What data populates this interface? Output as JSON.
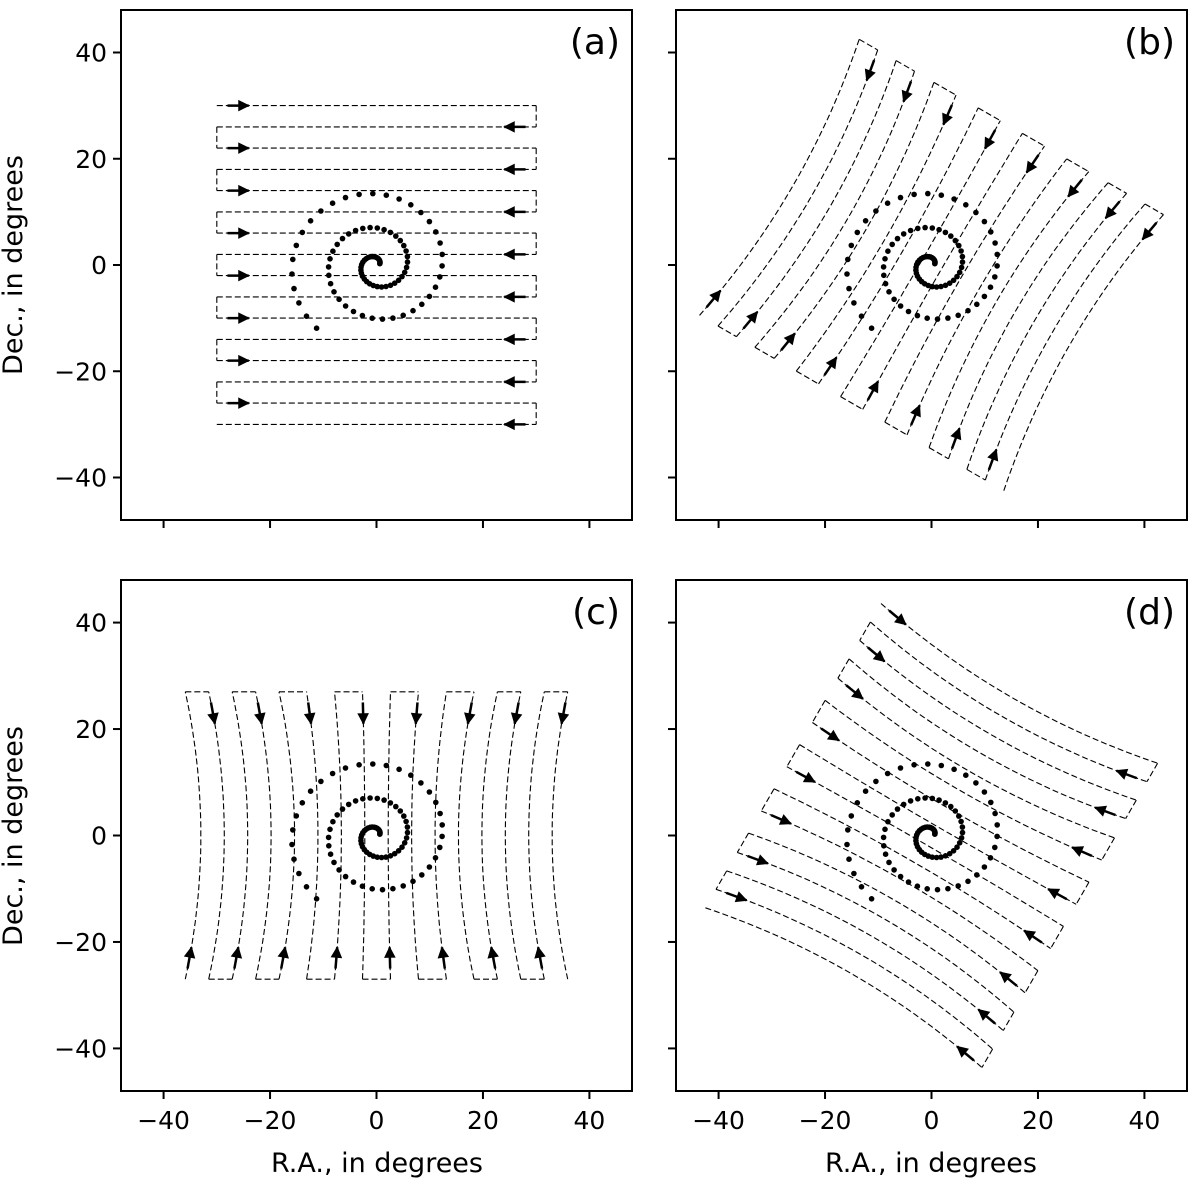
{
  "chart_data": {
    "type": "scatter",
    "xlim": [
      -48,
      48
    ],
    "ylim": [
      -48,
      48
    ],
    "xticks": [
      -40,
      -20,
      0,
      20,
      40
    ],
    "yticks": [
      -40,
      -20,
      0,
      20,
      40
    ],
    "tick_labels": [
      "−40",
      "−20",
      "0",
      "20",
      "40"
    ],
    "xlabel": "R.A., in degrees",
    "ylabel": "Dec., in degrees",
    "grid": false,
    "sources": {
      "description_type": "spiral",
      "count": 90,
      "max_radius_deg": 15.5,
      "turns": 2.6
    },
    "panels": [
      {
        "label": "(a)",
        "scan_type": "boustrophedon-horizontal",
        "ra_range": [
          -30,
          30
        ],
        "dec_range": [
          -30,
          30
        ],
        "num_legs": 16,
        "rotation_deg": 0,
        "curvature": 0
      },
      {
        "label": "(b)",
        "scan_type": "boustrophedon-rotated",
        "ra_range": [
          -30,
          30
        ],
        "dec_range": [
          -30,
          30
        ],
        "num_legs": 16,
        "rotation_deg": 60,
        "curvature": 0.1
      },
      {
        "label": "(c)",
        "scan_type": "boustrophedon-vertical",
        "ra_range": [
          -33,
          33
        ],
        "dec_range": [
          -27,
          27
        ],
        "num_legs": 16,
        "rotation_deg": 0,
        "curvature": 0.12
      },
      {
        "label": "(d)",
        "scan_type": "boustrophedon-rotated",
        "ra_range": [
          -30,
          30
        ],
        "dec_range": [
          -30,
          30
        ],
        "num_legs": 16,
        "rotation_deg": -30,
        "curvature": 0.1
      }
    ]
  }
}
